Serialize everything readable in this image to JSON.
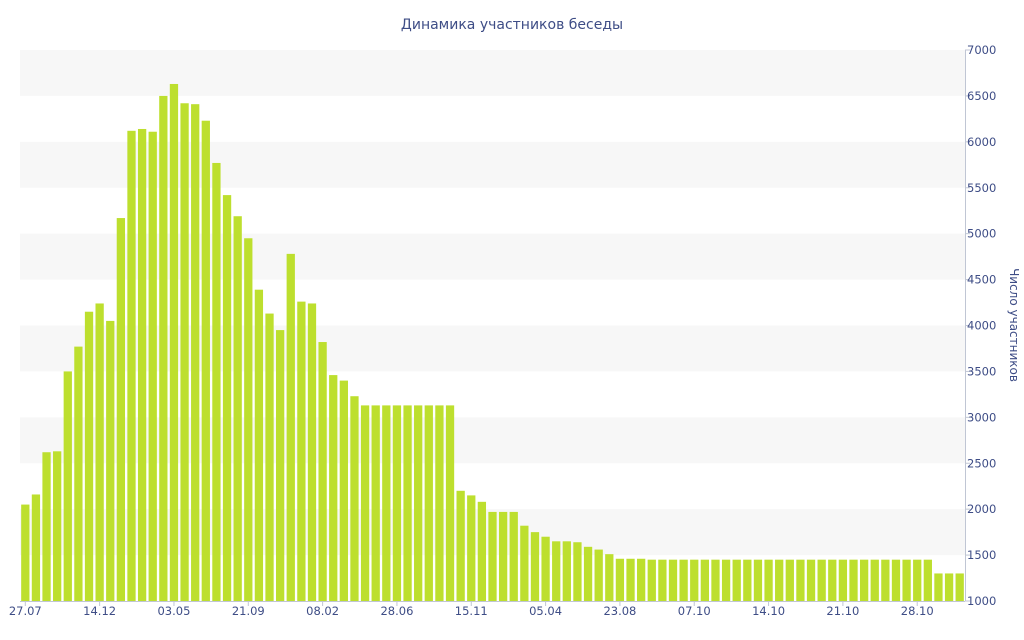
{
  "chart_data": {
    "type": "bar",
    "title": "Динамика участников беседы",
    "ylabel": "Число участников",
    "ylim": [
      1000,
      7000
    ],
    "y_ticks": [
      1000,
      1500,
      2000,
      2500,
      3000,
      3500,
      4000,
      4500,
      5000,
      5500,
      6000,
      6500,
      7000
    ],
    "y_axis_side": "right",
    "grid": "alternating horizontal bands",
    "x_tick_labels": [
      {
        "label": "27.07",
        "index": 0
      },
      {
        "label": "14.12",
        "index": 7
      },
      {
        "label": "03.05",
        "index": 14
      },
      {
        "label": "21.09",
        "index": 21
      },
      {
        "label": "08.02",
        "index": 28
      },
      {
        "label": "28.06",
        "index": 35
      },
      {
        "label": "15.11",
        "index": 42
      },
      {
        "label": "05.04",
        "index": 49
      },
      {
        "label": "23.08",
        "index": 56
      },
      {
        "label": "07.10",
        "index": 63
      },
      {
        "label": "14.10",
        "index": 70
      },
      {
        "label": "21.10",
        "index": 77
      },
      {
        "label": "28.10",
        "index": 84
      }
    ],
    "values": [
      2050,
      2160,
      2620,
      2630,
      3500,
      3770,
      4150,
      4240,
      4050,
      5170,
      6120,
      6140,
      6110,
      6500,
      6630,
      6420,
      6410,
      6230,
      5770,
      5420,
      5190,
      4950,
      4390,
      4130,
      3950,
      4780,
      4260,
      4240,
      3820,
      3460,
      3400,
      3230,
      3130,
      3130,
      3130,
      3130,
      3130,
      3130,
      3130,
      3130,
      3130,
      2200,
      2150,
      2080,
      1970,
      1970,
      1970,
      1820,
      1750,
      1700,
      1650,
      1650,
      1640,
      1590,
      1560,
      1510,
      1460,
      1460,
      1460,
      1450,
      1450,
      1450,
      1450,
      1450,
      1450,
      1450,
      1450,
      1450,
      1450,
      1450,
      1450,
      1450,
      1450,
      1450,
      1450,
      1450,
      1450,
      1450,
      1450,
      1450,
      1450,
      1450,
      1450,
      1450,
      1450,
      1450,
      1300,
      1300,
      1300
    ],
    "colors": {
      "bar": "#bddf2e",
      "text": "#3e4d86",
      "band": "#f7f7f7",
      "axis": "#c0c6d4"
    }
  }
}
